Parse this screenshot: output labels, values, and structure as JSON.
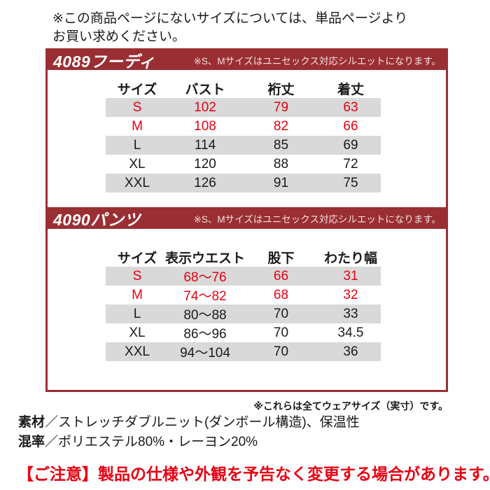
{
  "colors": {
    "panel_red": "#9a2f33",
    "accent_red": "#e60012",
    "stripe_gray": "#d9d9d9",
    "text_black": "#1a1a1a",
    "bar_note_pink": "#f2dfdf"
  },
  "top_note": {
    "line1": "※この商品ページにないサイズについては、単品ページより",
    "line2": "お買い求めください。"
  },
  "hoodie": {
    "title": "4089フーディ",
    "note": "※S、Mサイズはユニセックス対応シルエットになります。",
    "columns": [
      "サイズ",
      "バスト",
      "裄丈",
      "着丈"
    ],
    "rows": [
      [
        "S",
        "102",
        "79",
        "63"
      ],
      [
        "M",
        "108",
        "82",
        "66"
      ],
      [
        "L",
        "114",
        "85",
        "69"
      ],
      [
        "XL",
        "120",
        "88",
        "72"
      ],
      [
        "XXL",
        "126",
        "91",
        "75"
      ]
    ]
  },
  "pants": {
    "title": "4090パンツ",
    "note": "※S、Mサイズはユニセックス対応シルエットになります。",
    "columns": [
      "サイズ",
      "表示ウエスト",
      "股下",
      "わたり幅"
    ],
    "rows": [
      [
        "S",
        "68〜76",
        "66",
        "31"
      ],
      [
        "M",
        "74〜82",
        "68",
        "32"
      ],
      [
        "L",
        "80〜88",
        "70",
        "33"
      ],
      [
        "XL",
        "86〜96",
        "70",
        "34.5"
      ],
      [
        "XXL",
        "94〜104",
        "70",
        "36"
      ]
    ]
  },
  "footnotes": {
    "wear_size": "※これらは全てウェアサイズ（実寸）です。",
    "material_label": "素材",
    "material_value": "／ストレッチダブルニット(ダンボール構造)、保温性",
    "blend_label": "混率",
    "blend_value": "／ポリエステル80%・レーヨン20%",
    "caution": "【ご注意】製品の仕様や外観を予告なく変更する場合があります。"
  }
}
